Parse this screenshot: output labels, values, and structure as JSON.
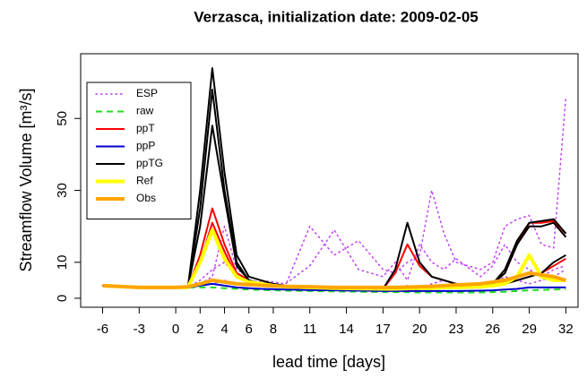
{
  "chart_data": {
    "type": "line",
    "title": "Verzasca, initialization date:  2009-02-05",
    "x_label": "lead time [days]",
    "y_label": "Streamflow Volume [m³/s]",
    "x": [
      -6,
      -3,
      0,
      1,
      2,
      3,
      4,
      5,
      6,
      7,
      8,
      9,
      11,
      13,
      15,
      17,
      18,
      19,
      20,
      21,
      22,
      23,
      25,
      26,
      27,
      28,
      29,
      30,
      31,
      32
    ],
    "xlim": [
      -7.8,
      33
    ],
    "xticks": [
      -6,
      -3,
      0,
      2,
      4,
      6,
      8,
      11,
      14,
      17,
      20,
      23,
      26,
      29,
      32
    ],
    "ylim": [
      -2.5,
      68
    ],
    "yticks": [
      0,
      10,
      30,
      50
    ],
    "legend": "top-left",
    "series": [
      {
        "name": "ESP",
        "color": "#c040f0",
        "dash": "dotted",
        "width": 1.5,
        "members": [
          [
            3.5,
            3,
            3,
            3,
            5,
            8,
            10,
            6,
            5,
            4.5,
            4,
            3.5,
            20,
            12,
            16,
            8,
            7,
            10,
            12,
            30,
            18,
            10,
            8,
            10,
            20,
            22,
            23,
            15,
            14,
            56
          ],
          [
            3.5,
            3,
            3,
            3,
            4,
            6,
            20,
            8,
            6,
            5,
            4.5,
            4,
            9,
            19,
            8,
            6,
            10,
            5,
            15,
            10,
            8,
            11,
            6,
            9,
            15,
            10,
            8,
            6,
            8,
            9
          ],
          [
            3.5,
            3,
            3,
            3,
            3.5,
            4,
            5,
            4,
            3.8,
            3.5,
            3.2,
            3,
            3,
            2.8,
            3,
            3,
            2.8,
            3.5,
            3,
            4,
            5,
            4,
            3.5,
            4,
            6,
            5,
            4,
            5,
            6,
            8
          ]
        ]
      },
      {
        "name": "raw",
        "color": "#22dd22",
        "dash": "dashed",
        "width": 2,
        "members": [
          [
            3.5,
            3,
            3,
            3,
            3,
            3,
            2.8,
            2.6,
            2.4,
            2.3,
            2.2,
            2.1,
            2,
            1.9,
            1.8,
            1.7,
            1.7,
            1.7,
            1.6,
            1.6,
            1.6,
            1.6,
            1.6,
            1.7,
            1.8,
            2,
            2.2,
            2.3,
            2.4,
            2.5
          ]
        ]
      },
      {
        "name": "ppT",
        "color": "#ff0000",
        "dash": "solid",
        "width": 2,
        "members": [
          [
            3.5,
            3,
            3,
            3,
            12,
            25,
            15,
            7,
            5,
            4,
            3.5,
            3.2,
            3,
            2.8,
            2.7,
            2.6,
            7,
            15,
            9,
            6,
            5,
            4,
            3.5,
            4,
            7,
            15,
            21,
            21,
            21.5,
            18
          ],
          [
            3.5,
            3,
            3,
            3,
            10,
            21,
            13,
            6,
            4.5,
            4,
            3.5,
            3.2,
            3,
            2.8,
            2.7,
            2.6,
            2.6,
            2.7,
            2.8,
            3,
            3,
            3,
            3.2,
            3.5,
            4,
            5,
            6,
            7,
            9,
            11
          ]
        ]
      },
      {
        "name": "ppP",
        "color": "#0000cc",
        "dash": "solid",
        "width": 2,
        "members": [
          [
            3.5,
            3,
            3,
            3,
            3.5,
            4,
            3.5,
            3,
            2.8,
            2.6,
            2.5,
            2.4,
            2.3,
            2.2,
            2.1,
            2,
            2,
            2,
            2,
            2,
            2,
            2,
            2.1,
            2.2,
            2.4,
            2.6,
            3,
            3,
            3,
            3
          ]
        ]
      },
      {
        "name": "ppTG",
        "color": "#000000",
        "dash": "solid",
        "width": 2,
        "members": [
          [
            3.5,
            3,
            3,
            3,
            30,
            64,
            35,
            12,
            6,
            5,
            4,
            3.5,
            3,
            2.8,
            2.7,
            2.6,
            8,
            21,
            10,
            6,
            5,
            4,
            3.5,
            4,
            8,
            16,
            21,
            21.5,
            22,
            18
          ],
          [
            3.5,
            3,
            3,
            3,
            25,
            58,
            30,
            10,
            5,
            4,
            3.5,
            3.2,
            3,
            2.8,
            2.7,
            2.6,
            3,
            3,
            3,
            3,
            3,
            3,
            3.2,
            4,
            7,
            15,
            20,
            20,
            21,
            17
          ],
          [
            3.5,
            3,
            3,
            3,
            20,
            48,
            28,
            9,
            5,
            4,
            3.5,
            3.2,
            3,
            2.8,
            2.7,
            2.6,
            2.6,
            2.7,
            2.8,
            3,
            3,
            3,
            3.2,
            3.5,
            4,
            5,
            6,
            7,
            10,
            12
          ]
        ]
      },
      {
        "name": "Ref",
        "color": "#ffff00",
        "dash": "solid",
        "width": 4,
        "members": [
          [
            3.5,
            3,
            3,
            3,
            10,
            19,
            11,
            6,
            4.5,
            4,
            3.5,
            3.2,
            3,
            2.8,
            2.7,
            2.6,
            2.6,
            2.7,
            2.8,
            2.8,
            3,
            3,
            3.2,
            3.5,
            4,
            6,
            12,
            6,
            5,
            5
          ]
        ]
      },
      {
        "name": "Obs",
        "color": "#ffa500",
        "dash": "solid",
        "width": 4,
        "members": [
          [
            3.5,
            3,
            3,
            3.2,
            4,
            5,
            4.5,
            4,
            3.8,
            3.6,
            3.4,
            3.3,
            3.2,
            3,
            3,
            3,
            3,
            3.1,
            3.2,
            3.3,
            3.5,
            3.7,
            4,
            4.5,
            5,
            6,
            7,
            6.5,
            6,
            5
          ]
        ]
      }
    ]
  }
}
